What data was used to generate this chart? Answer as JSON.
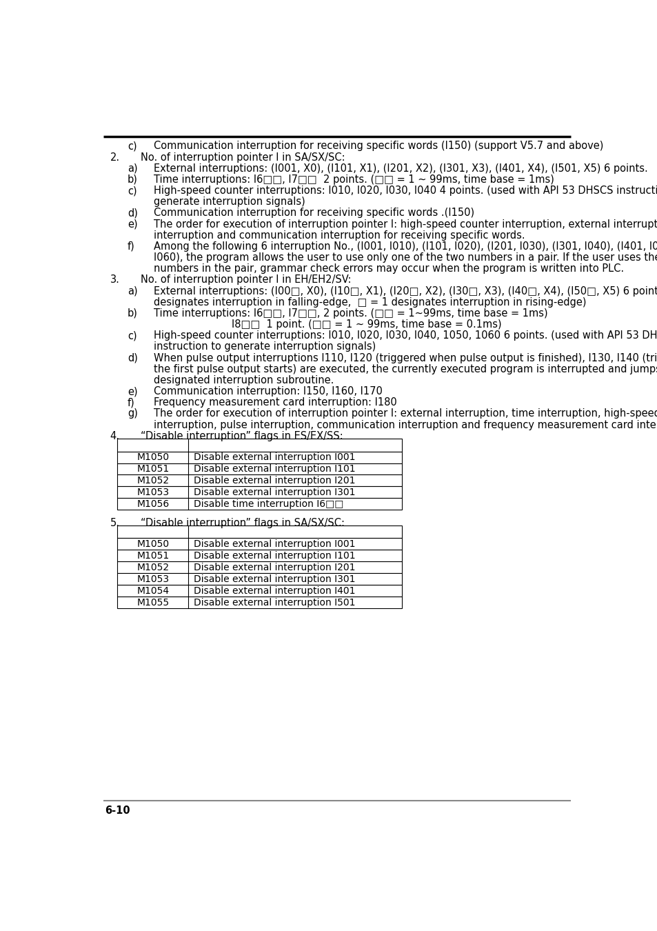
{
  "page_number": "6-10",
  "background_color": "#ffffff",
  "text_color": "#000000",
  "table1_rows": [
    [
      "M1050",
      "Disable external interruption I001"
    ],
    [
      "M1051",
      "Disable external interruption I101"
    ],
    [
      "M1052",
      "Disable external interruption I201"
    ],
    [
      "M1053",
      "Disable external interruption I301"
    ],
    [
      "M1056",
      "Disable time interruption I6□□"
    ]
  ],
  "table2_rows": [
    [
      "M1050",
      "Disable external interruption I001"
    ],
    [
      "M1051",
      "Disable external interruption I101"
    ],
    [
      "M1052",
      "Disable external interruption I201"
    ],
    [
      "M1053",
      "Disable external interruption I301"
    ],
    [
      "M1054",
      "Disable external interruption I401"
    ],
    [
      "M1055",
      "Disable external interruption I501"
    ]
  ]
}
